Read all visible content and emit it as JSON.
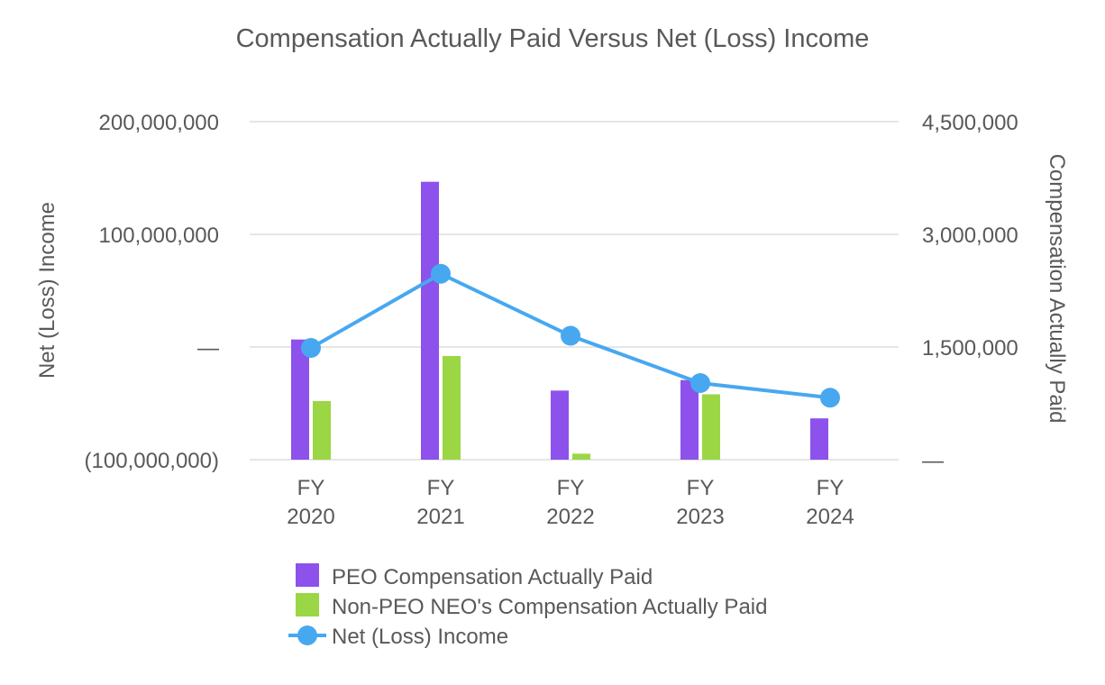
{
  "chart_data": {
    "type": "bar",
    "title": "Compensation Actually Paid Versus Net (Loss) Income",
    "categories": [
      [
        "FY",
        "2020"
      ],
      [
        "FY",
        "2021"
      ],
      [
        "FY",
        "2022"
      ],
      [
        "FY",
        "2023"
      ],
      [
        "FY",
        "2024"
      ]
    ],
    "left_axis": {
      "label": "Net (Loss) Income",
      "range": [
        -100000000,
        200000000
      ],
      "ticks": [
        {
          "value": 200000000,
          "label": "200,000,000"
        },
        {
          "value": 100000000,
          "label": "100,000,000"
        },
        {
          "value": 0,
          "label": "—"
        },
        {
          "value": -100000000,
          "label": "(100,000,000)"
        }
      ]
    },
    "right_axis": {
      "label": "Compensation Actually Paid",
      "range": [
        0,
        4500000
      ],
      "ticks": [
        {
          "value": 4500000,
          "label": "4,500,000"
        },
        {
          "value": 3000000,
          "label": "3,000,000"
        },
        {
          "value": 1500000,
          "label": "1,500,000"
        },
        {
          "value": 0,
          "label": "—"
        }
      ]
    },
    "grid": true,
    "legend_position": "bottom",
    "series": [
      {
        "name": "PEO Compensation Actually Paid",
        "kind": "bar",
        "axis": "right",
        "color": "#8c52eb",
        "values": [
          1600000,
          3700000,
          920000,
          1060000,
          550000
        ]
      },
      {
        "name": "Non-PEO NEO's Compensation Actually Paid",
        "kind": "bar",
        "axis": "right",
        "color": "#9bd645",
        "values": [
          780000,
          1380000,
          80000,
          870000,
          null
        ]
      },
      {
        "name": "Net (Loss) Income",
        "kind": "line",
        "axis": "left",
        "color": "#47a8f0",
        "values": [
          -800000,
          65000000,
          10000000,
          -32000000,
          -45000000
        ]
      }
    ]
  }
}
